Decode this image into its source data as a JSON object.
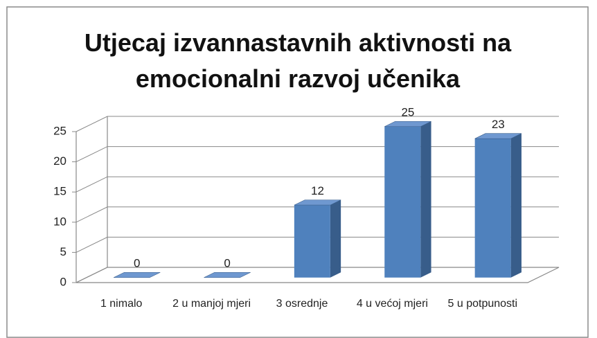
{
  "chart_data": {
    "type": "bar3d",
    "title": "Utjecaj izvannastavnih aktivnosti na emocionalni razvoj učenika",
    "categories": [
      "1 nimalo",
      "2 u manjoj mjeri",
      "3 osrednje",
      "4 u većoj mjeri",
      "5 u potpunosti"
    ],
    "values": [
      0,
      0,
      12,
      25,
      23
    ],
    "color": "#4f81bd",
    "ylim": [
      0,
      25
    ],
    "yticks": [
      0,
      5,
      10,
      15,
      20,
      25
    ],
    "grid": true
  }
}
